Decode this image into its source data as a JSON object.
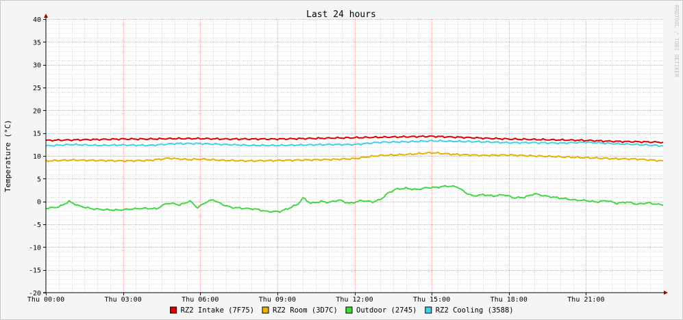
{
  "chart_data": {
    "type": "line",
    "title": "Last 24 hours",
    "ylabel": "Temperature (°C)",
    "xlabel": "",
    "watermark": "RRDTOOL / TOBI OETIKER",
    "ylim": [
      -20,
      40
    ],
    "yticks": [
      40,
      35,
      30,
      25,
      20,
      15,
      10,
      5,
      0,
      -5,
      -10,
      -15,
      -20
    ],
    "xlim_hours": [
      0,
      24
    ],
    "xticks": [
      {
        "hour": 0,
        "label": "Thu 00:00"
      },
      {
        "hour": 3,
        "label": "Thu 03:00"
      },
      {
        "hour": 6,
        "label": "Thu 06:00"
      },
      {
        "hour": 9,
        "label": "Thu 09:00"
      },
      {
        "hour": 12,
        "label": "Thu 12:00"
      },
      {
        "hour": 15,
        "label": "Thu 15:00"
      },
      {
        "hour": 18,
        "label": "Thu 18:00"
      },
      {
        "hour": 21,
        "label": "Thu 21:00"
      }
    ],
    "grid": true,
    "legend_position": "bottom",
    "series": [
      {
        "name": "RZ2 Intake (7F75)",
        "color": "#e00000",
        "points": [
          [
            0,
            13.4
          ],
          [
            1,
            13.5
          ],
          [
            2,
            13.6
          ],
          [
            3,
            13.7
          ],
          [
            4,
            13.7
          ],
          [
            5,
            13.8
          ],
          [
            6,
            13.8
          ],
          [
            7,
            13.7
          ],
          [
            8,
            13.7
          ],
          [
            9,
            13.7
          ],
          [
            10,
            13.8
          ],
          [
            11,
            13.9
          ],
          [
            12,
            14.0
          ],
          [
            13,
            14.1
          ],
          [
            14,
            14.2
          ],
          [
            15,
            14.3
          ],
          [
            16,
            14.1
          ],
          [
            17,
            13.9
          ],
          [
            18,
            13.7
          ],
          [
            19,
            13.6
          ],
          [
            20,
            13.5
          ],
          [
            21,
            13.4
          ],
          [
            22,
            13.2
          ],
          [
            23,
            13.1
          ],
          [
            24,
            13.0
          ]
        ]
      },
      {
        "name": "RZ2 Room (3D7C)",
        "color": "#e8b000",
        "points": [
          [
            0,
            8.9
          ],
          [
            1,
            9.1
          ],
          [
            2,
            9.0
          ],
          [
            3,
            8.9
          ],
          [
            4,
            9.0
          ],
          [
            4.8,
            9.5
          ],
          [
            5.5,
            9.2
          ],
          [
            6,
            9.3
          ],
          [
            7,
            9.0
          ],
          [
            8,
            8.9
          ],
          [
            9,
            9.0
          ],
          [
            10,
            9.1
          ],
          [
            11,
            9.2
          ],
          [
            12,
            9.4
          ],
          [
            12.5,
            9.8
          ],
          [
            13,
            10.1
          ],
          [
            14,
            10.3
          ],
          [
            15,
            10.7
          ],
          [
            15.5,
            10.5
          ],
          [
            16,
            10.3
          ],
          [
            17,
            10.1
          ],
          [
            18,
            10.2
          ],
          [
            19,
            10.0
          ],
          [
            20,
            9.8
          ],
          [
            21,
            9.6
          ],
          [
            22,
            9.4
          ],
          [
            23,
            9.3
          ],
          [
            24,
            8.9
          ]
        ]
      },
      {
        "name": "Outdoor (2745)",
        "color": "#40d840",
        "points": [
          [
            0,
            -1.5
          ],
          [
            0.5,
            -1.2
          ],
          [
            0.9,
            0.0
          ],
          [
            1.3,
            -1.0
          ],
          [
            1.8,
            -1.6
          ],
          [
            2.3,
            -1.8
          ],
          [
            2.8,
            -1.9
          ],
          [
            3.2,
            -1.7
          ],
          [
            3.8,
            -1.5
          ],
          [
            4.3,
            -1.6
          ],
          [
            4.7,
            -0.4
          ],
          [
            5.0,
            -0.5
          ],
          [
            5.2,
            -0.8
          ],
          [
            5.6,
            0.1
          ],
          [
            5.9,
            -1.4
          ],
          [
            6.2,
            -0.2
          ],
          [
            6.5,
            0.4
          ],
          [
            6.8,
            -0.5
          ],
          [
            7.2,
            -1.3
          ],
          [
            7.7,
            -1.5
          ],
          [
            8.2,
            -1.7
          ],
          [
            8.6,
            -2.2
          ],
          [
            9.1,
            -2.2
          ],
          [
            9.4,
            -1.6
          ],
          [
            9.8,
            -0.6
          ],
          [
            10.0,
            0.8
          ],
          [
            10.3,
            -0.4
          ],
          [
            10.7,
            0.0
          ],
          [
            11.0,
            -0.2
          ],
          [
            11.4,
            0.3
          ],
          [
            11.8,
            -0.4
          ],
          [
            12.3,
            0.2
          ],
          [
            12.7,
            -0.1
          ],
          [
            13.0,
            0.4
          ],
          [
            13.3,
            1.8
          ],
          [
            13.6,
            2.7
          ],
          [
            14.0,
            2.9
          ],
          [
            14.4,
            2.6
          ],
          [
            14.8,
            3.0
          ],
          [
            15.2,
            3.1
          ],
          [
            15.6,
            3.4
          ],
          [
            16.0,
            3.2
          ],
          [
            16.3,
            2.0
          ],
          [
            16.6,
            1.2
          ],
          [
            17.0,
            1.5
          ],
          [
            17.4,
            1.2
          ],
          [
            17.8,
            1.5
          ],
          [
            18.2,
            0.8
          ],
          [
            18.6,
            0.9
          ],
          [
            19.0,
            1.7
          ],
          [
            19.4,
            1.2
          ],
          [
            19.8,
            0.9
          ],
          [
            20.2,
            0.6
          ],
          [
            20.6,
            0.3
          ],
          [
            21.0,
            0.2
          ],
          [
            21.4,
            -0.1
          ],
          [
            21.8,
            0.2
          ],
          [
            22.2,
            -0.4
          ],
          [
            22.6,
            -0.1
          ],
          [
            23.0,
            -0.6
          ],
          [
            23.4,
            -0.3
          ],
          [
            24.0,
            -0.8
          ]
        ]
      },
      {
        "name": "RZ2 Cooling (3588)",
        "color": "#40d0e8",
        "points": [
          [
            0,
            12.2
          ],
          [
            1,
            12.5
          ],
          [
            2,
            12.3
          ],
          [
            3,
            12.4
          ],
          [
            4,
            12.3
          ],
          [
            5,
            12.7
          ],
          [
            6,
            12.7
          ],
          [
            7,
            12.5
          ],
          [
            8,
            12.3
          ],
          [
            9,
            12.3
          ],
          [
            10,
            12.4
          ],
          [
            11,
            12.5
          ],
          [
            12,
            12.5
          ],
          [
            13,
            13.0
          ],
          [
            14,
            13.1
          ],
          [
            15,
            13.3
          ],
          [
            16,
            13.2
          ],
          [
            17,
            13.1
          ],
          [
            18,
            12.9
          ],
          [
            19,
            12.9
          ],
          [
            20,
            12.8
          ],
          [
            21,
            13.0
          ],
          [
            22,
            12.7
          ],
          [
            23,
            12.5
          ],
          [
            24,
            12.2
          ]
        ]
      }
    ]
  }
}
